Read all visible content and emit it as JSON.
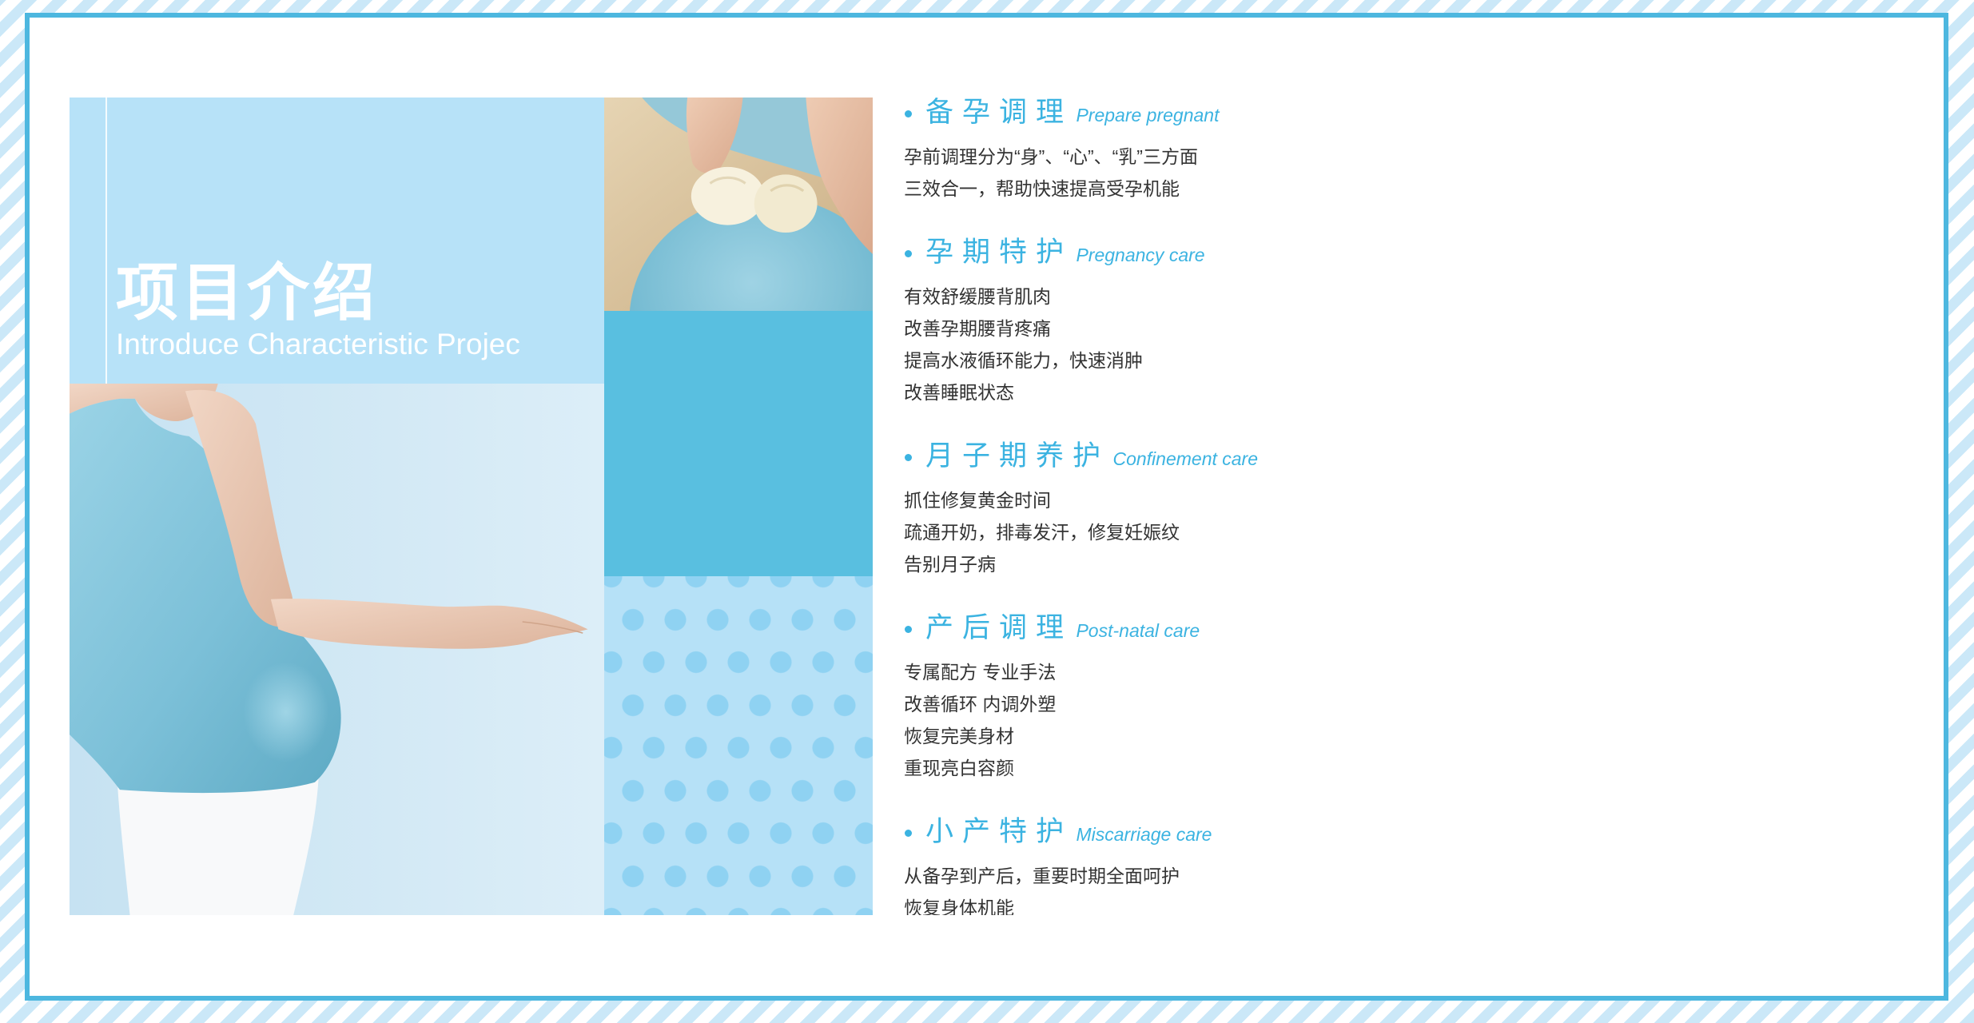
{
  "intro": {
    "title_cn": "项目介绍",
    "title_en": "Introduce Characteristic Projec"
  },
  "services": [
    {
      "title_cn": "备孕调理",
      "title_en": "Prepare pregnant",
      "lines": [
        "孕前调理分为“身”、“心”、“乳”三方面",
        "三效合一，帮助快速提高受孕机能"
      ]
    },
    {
      "title_cn": "孕期特护",
      "title_en": "Pregnancy care",
      "lines": [
        "有效舒缓腰背肌肉",
        "改善孕期腰背疼痛",
        "提高水液循环能力，快速消肿",
        "改善睡眠状态"
      ]
    },
    {
      "title_cn": "月子期养护",
      "title_en": "Confinement care",
      "lines": [
        "抓住修复黄金时间",
        "疏通开奶，排毒发汗，修复妊娠纹",
        "告别月子病"
      ]
    },
    {
      "title_cn": "产后调理",
      "title_en": "Post-natal care",
      "lines": [
        "专属配方 专业手法",
        "改善循环 内调外塑",
        "恢复完美身材",
        "重现亮白容颜"
      ]
    },
    {
      "title_cn": "小产特护",
      "title_en": "Miscarriage care",
      "lines": [
        "从备孕到产后，重要时期全面呵护",
        "恢复身体机能"
      ]
    }
  ],
  "icons": {
    "bullet": "bullet-dot-icon"
  },
  "colors": {
    "accent": "#3bb3e1",
    "text": "#333333",
    "block": "#59bfe0",
    "panel": "#b7e2f8",
    "dots-bg": "#b6e1f7",
    "dots": "#8fd2f2",
    "border": "#4db7df",
    "stripe": "#cbe8f8"
  }
}
